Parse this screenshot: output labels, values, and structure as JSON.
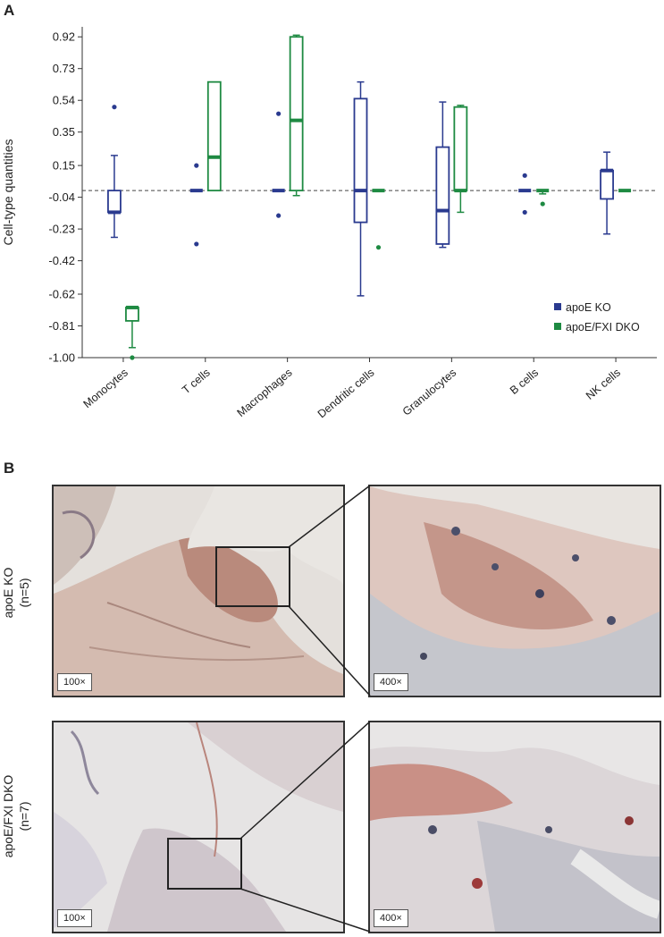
{
  "panels": {
    "a_label": "A",
    "b_label": "B"
  },
  "chart_data": {
    "type": "box",
    "ylabel": "Cell-type quantities",
    "xlabel": "",
    "ylim": [
      -1.0,
      0.98
    ],
    "yticks": [
      0.92,
      0.73,
      0.54,
      0.35,
      0.15,
      -0.04,
      -0.23,
      -0.42,
      -0.62,
      -0.81,
      -1.0
    ],
    "ytick_labels": [
      "0.92",
      "0.73",
      "0.54",
      "0.35",
      "0.15",
      "-0.04",
      "-0.23",
      "-0.42",
      "-0.62",
      "-0.81",
      "-1.00"
    ],
    "reference_line": 0.0,
    "legend_position": "bottom-right",
    "categories": [
      "Monocytes",
      "T cells",
      "Macrophages",
      "Dendritic cells",
      "Granulocytes",
      "B cells",
      "NK cells"
    ],
    "series": [
      {
        "name": "apoE KO",
        "color": "#2a3a8f",
        "boxes": [
          {
            "whisker_low": -0.28,
            "q1": -0.13,
            "median": -0.13,
            "q3": 0.0,
            "whisker_high": 0.21,
            "outliers": [
              0.5
            ]
          },
          {
            "whisker_low": 0.0,
            "q1": 0.0,
            "median": 0.0,
            "q3": 0.0,
            "whisker_high": 0.0,
            "outliers": [
              0.15,
              -0.32
            ]
          },
          {
            "whisker_low": 0.0,
            "q1": 0.0,
            "median": 0.0,
            "q3": 0.0,
            "whisker_high": 0.0,
            "outliers": [
              0.46,
              -0.15
            ]
          },
          {
            "whisker_low": -0.63,
            "q1": -0.19,
            "median": 0.0,
            "q3": 0.55,
            "whisker_high": 0.65,
            "outliers": []
          },
          {
            "whisker_low": -0.34,
            "q1": -0.32,
            "median": -0.12,
            "q3": 0.26,
            "whisker_high": 0.53,
            "outliers": []
          },
          {
            "whisker_low": 0.0,
            "q1": 0.0,
            "median": 0.0,
            "q3": 0.0,
            "whisker_high": 0.0,
            "outliers": [
              0.09,
              -0.13
            ]
          },
          {
            "whisker_low": -0.26,
            "q1": -0.05,
            "median": 0.12,
            "q3": 0.12,
            "whisker_high": 0.23,
            "outliers": []
          }
        ]
      },
      {
        "name": "apoE/FXI DKO",
        "color": "#1e8a42",
        "boxes": [
          {
            "whisker_low": -0.94,
            "q1": -0.78,
            "median": -0.7,
            "q3": -0.7,
            "whisker_high": -0.7,
            "outliers": [
              -1.0
            ]
          },
          {
            "whisker_low": 0.0,
            "q1": 0.0,
            "median": 0.2,
            "q3": 0.65,
            "whisker_high": 0.65,
            "outliers": []
          },
          {
            "whisker_low": -0.03,
            "q1": 0.0,
            "median": 0.42,
            "q3": 0.92,
            "whisker_high": 0.93,
            "outliers": []
          },
          {
            "whisker_low": 0.0,
            "q1": 0.0,
            "median": 0.0,
            "q3": 0.0,
            "whisker_high": 0.0,
            "outliers": [
              -0.34
            ]
          },
          {
            "whisker_low": -0.13,
            "q1": 0.0,
            "median": 0.0,
            "q3": 0.5,
            "whisker_high": 0.51,
            "outliers": []
          },
          {
            "whisker_low": -0.02,
            "q1": 0.0,
            "median": 0.0,
            "q3": 0.0,
            "whisker_high": 0.0,
            "outliers": [
              -0.08
            ]
          },
          {
            "whisker_low": 0.0,
            "q1": 0.0,
            "median": 0.0,
            "q3": 0.0,
            "whisker_high": 0.0,
            "outliers": []
          }
        ]
      }
    ]
  },
  "micrographs": {
    "rows": [
      {
        "label": "apoE KO",
        "n": "(n=5)",
        "low_mag": "100×",
        "high_mag": "400×"
      },
      {
        "label": "apoE/FXI DKO",
        "n": "(n=7)",
        "low_mag": "100×",
        "high_mag": "400×"
      }
    ]
  }
}
